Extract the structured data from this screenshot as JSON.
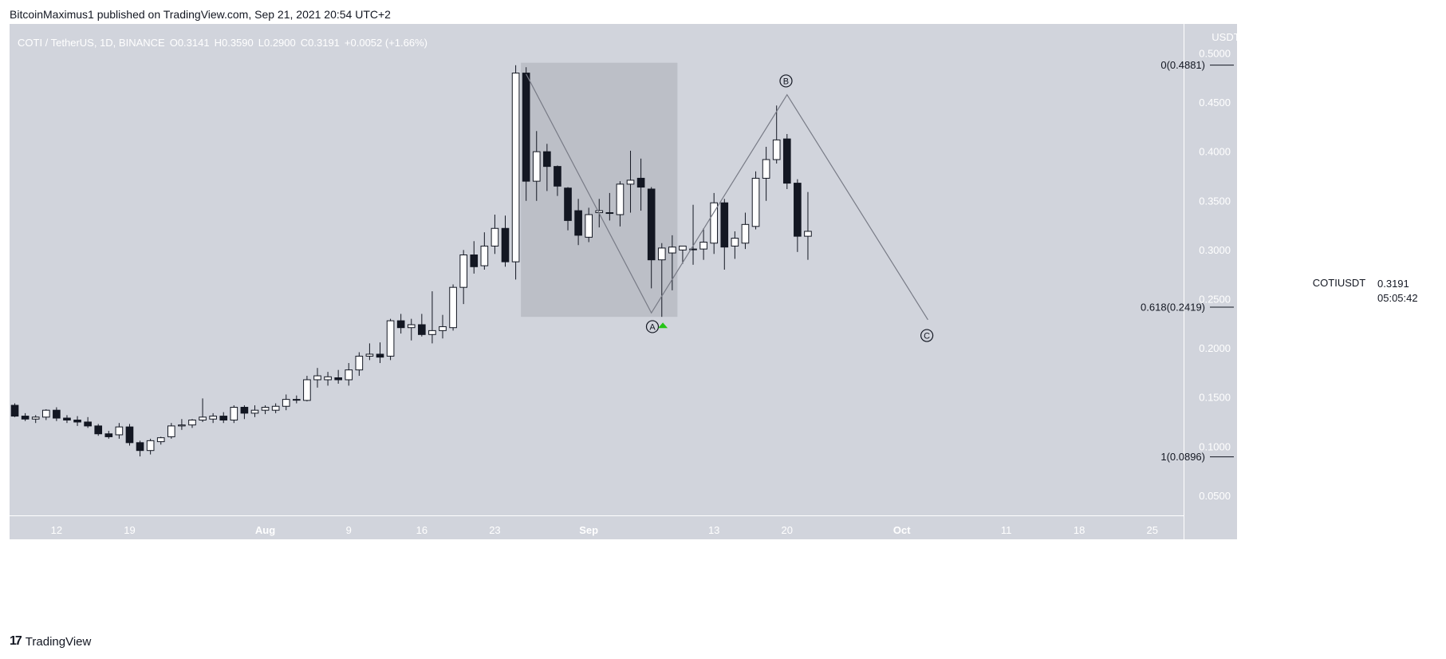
{
  "header": {
    "publisher_line": "BitcoinMaximus1 published on TradingView.com, Sep 21, 2021 20:54 UTC+2"
  },
  "footer": {
    "brand": "TradingView",
    "logo_glyph": "17"
  },
  "colors": {
    "plot_bg": "#d1d4dc",
    "box": "#bcbfc7",
    "candle_up": "#ffffff",
    "candle_down": "#131722",
    "line": "#787b86",
    "green_marker": "#26c417"
  },
  "chart_data": {
    "type": "candlestick",
    "title": "COTI / TetherUS, 1D, BINANCE",
    "ohlc_legend": {
      "o_label": "O",
      "o": "0.3141",
      "h_label": "H",
      "h": "0.3590",
      "l_label": "L",
      "l": "0.2900",
      "c_label": "C",
      "c": "0.3191",
      "change": "+0.0052 (+1.66%)"
    },
    "y_axis": {
      "unit": "USDT",
      "ylim": [
        0.03,
        0.53
      ],
      "ticks": [
        "0.5000",
        "0.4500",
        "0.4000",
        "0.3500",
        "0.3000",
        "0.2500",
        "0.2000",
        "0.1500",
        "0.1000",
        "0.0500"
      ]
    },
    "x_axis": {
      "ticks": [
        {
          "label": "12",
          "day": 4
        },
        {
          "label": "19",
          "day": 11
        },
        {
          "label": "Aug",
          "day": 24
        },
        {
          "label": "9",
          "day": 32
        },
        {
          "label": "16",
          "day": 39
        },
        {
          "label": "23",
          "day": 46
        },
        {
          "label": "Sep",
          "day": 55
        },
        {
          "label": "13",
          "day": 67
        },
        {
          "label": "20",
          "day": 74
        },
        {
          "label": "Oct",
          "day": 85
        },
        {
          "label": "11",
          "day": 95
        },
        {
          "label": "18",
          "day": 102
        },
        {
          "label": "25",
          "day": 109
        }
      ],
      "xlim": [
        -0.5,
        112
      ]
    },
    "price_label": {
      "symbol": "COTIUSDT",
      "price": "0.3191",
      "countdown": "05:05:42"
    },
    "candles": [
      [
        0.142,
        0.144,
        0.13,
        0.131
      ],
      [
        0.131,
        0.134,
        0.126,
        0.128
      ],
      [
        0.128,
        0.132,
        0.124,
        0.13
      ],
      [
        0.13,
        0.138,
        0.127,
        0.137
      ],
      [
        0.137,
        0.14,
        0.126,
        0.129
      ],
      [
        0.129,
        0.132,
        0.124,
        0.127
      ],
      [
        0.127,
        0.131,
        0.121,
        0.125
      ],
      [
        0.125,
        0.13,
        0.119,
        0.121
      ],
      [
        0.121,
        0.123,
        0.111,
        0.113
      ],
      [
        0.113,
        0.116,
        0.108,
        0.11
      ],
      [
        0.112,
        0.124,
        0.108,
        0.12
      ],
      [
        0.12,
        0.123,
        0.101,
        0.104
      ],
      [
        0.104,
        0.106,
        0.09,
        0.096
      ],
      [
        0.096,
        0.108,
        0.092,
        0.106
      ],
      [
        0.105,
        0.11,
        0.102,
        0.109
      ],
      [
        0.11,
        0.124,
        0.108,
        0.121
      ],
      [
        0.121,
        0.128,
        0.117,
        0.122
      ],
      [
        0.122,
        0.128,
        0.119,
        0.127
      ],
      [
        0.127,
        0.149,
        0.125,
        0.13
      ],
      [
        0.128,
        0.134,
        0.124,
        0.131
      ],
      [
        0.131,
        0.135,
        0.124,
        0.127
      ],
      [
        0.127,
        0.142,
        0.124,
        0.14
      ],
      [
        0.14,
        0.142,
        0.128,
        0.134
      ],
      [
        0.134,
        0.142,
        0.13,
        0.137
      ],
      [
        0.137,
        0.142,
        0.133,
        0.14
      ],
      [
        0.137,
        0.144,
        0.134,
        0.141
      ],
      [
        0.141,
        0.153,
        0.137,
        0.148
      ],
      [
        0.148,
        0.152,
        0.144,
        0.148
      ],
      [
        0.147,
        0.172,
        0.146,
        0.168
      ],
      [
        0.168,
        0.18,
        0.16,
        0.172
      ],
      [
        0.168,
        0.176,
        0.162,
        0.171
      ],
      [
        0.17,
        0.178,
        0.164,
        0.168
      ],
      [
        0.168,
        0.185,
        0.162,
        0.178
      ],
      [
        0.178,
        0.196,
        0.172,
        0.192
      ],
      [
        0.192,
        0.205,
        0.188,
        0.194
      ],
      [
        0.194,
        0.206,
        0.185,
        0.191
      ],
      [
        0.192,
        0.23,
        0.188,
        0.228
      ],
      [
        0.228,
        0.235,
        0.215,
        0.221
      ],
      [
        0.221,
        0.23,
        0.208,
        0.224
      ],
      [
        0.224,
        0.235,
        0.212,
        0.214
      ],
      [
        0.214,
        0.258,
        0.205,
        0.218
      ],
      [
        0.218,
        0.234,
        0.21,
        0.222
      ],
      [
        0.221,
        0.265,
        0.218,
        0.262
      ],
      [
        0.262,
        0.3,
        0.245,
        0.295
      ],
      [
        0.295,
        0.309,
        0.276,
        0.283
      ],
      [
        0.284,
        0.318,
        0.28,
        0.304
      ],
      [
        0.304,
        0.336,
        0.296,
        0.322
      ],
      [
        0.322,
        0.335,
        0.283,
        0.288
      ],
      [
        0.288,
        0.488,
        0.27,
        0.48
      ],
      [
        0.48,
        0.486,
        0.35,
        0.37
      ],
      [
        0.37,
        0.421,
        0.35,
        0.4
      ],
      [
        0.4,
        0.408,
        0.36,
        0.385
      ],
      [
        0.385,
        0.386,
        0.355,
        0.365
      ],
      [
        0.363,
        0.364,
        0.32,
        0.33
      ],
      [
        0.34,
        0.352,
        0.305,
        0.315
      ],
      [
        0.313,
        0.343,
        0.308,
        0.336
      ],
      [
        0.338,
        0.352,
        0.323,
        0.34
      ],
      [
        0.338,
        0.358,
        0.33,
        0.338
      ],
      [
        0.336,
        0.37,
        0.324,
        0.367
      ],
      [
        0.367,
        0.401,
        0.338,
        0.371
      ],
      [
        0.373,
        0.393,
        0.34,
        0.364
      ],
      [
        0.362,
        0.364,
        0.261,
        0.29
      ],
      [
        0.29,
        0.307,
        0.232,
        0.302
      ],
      [
        0.297,
        0.315,
        0.259,
        0.303
      ],
      [
        0.3,
        0.304,
        0.286,
        0.304
      ],
      [
        0.301,
        0.346,
        0.285,
        0.301
      ],
      [
        0.301,
        0.322,
        0.29,
        0.308
      ],
      [
        0.307,
        0.358,
        0.296,
        0.348
      ],
      [
        0.348,
        0.352,
        0.28,
        0.303
      ],
      [
        0.304,
        0.319,
        0.291,
        0.312
      ],
      [
        0.307,
        0.338,
        0.301,
        0.326
      ],
      [
        0.324,
        0.38,
        0.321,
        0.373
      ],
      [
        0.373,
        0.405,
        0.35,
        0.392
      ],
      [
        0.392,
        0.447,
        0.388,
        0.412
      ],
      [
        0.413,
        0.418,
        0.362,
        0.368
      ],
      [
        0.368,
        0.372,
        0.298,
        0.314
      ],
      [
        0.314,
        0.359,
        0.29,
        0.319
      ]
    ],
    "shaded_box": {
      "day_start": 48.5,
      "day_end": 63.5,
      "price_top": 0.4905,
      "price_bottom": 0.232
    },
    "abc_path": [
      {
        "day": 49,
        "price": 0.479
      },
      {
        "day": 61,
        "price": 0.236
      },
      {
        "day": 74,
        "price": 0.458
      },
      {
        "day": 87.5,
        "price": 0.229
      }
    ],
    "wave_labels": [
      {
        "label": "A",
        "day": 61.1,
        "price": 0.222
      },
      {
        "label": "B",
        "day": 73.9,
        "price": 0.472
      },
      {
        "label": "C",
        "day": 87.4,
        "price": 0.213
      }
    ],
    "green_marker": {
      "day": 62.1,
      "price": 0.223
    },
    "fib_levels": [
      {
        "label": "0(0.4881)",
        "price": 0.4881
      },
      {
        "label": "0.618(0.2419)",
        "price": 0.2419
      },
      {
        "label": "1(0.0896)",
        "price": 0.0896
      }
    ]
  }
}
